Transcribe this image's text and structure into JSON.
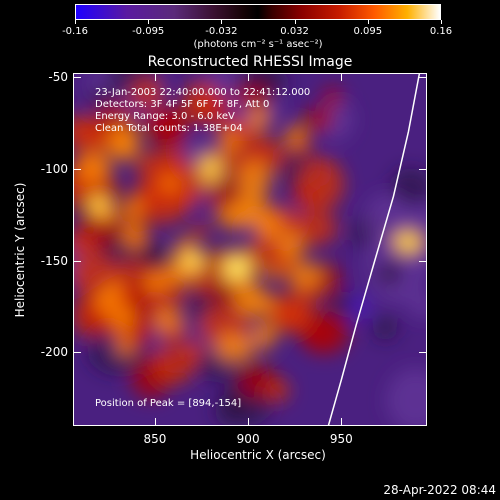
{
  "colorbar": {
    "tick_labels": [
      "-0.16",
      "-0.095",
      "-0.032",
      "0.032",
      "0.095",
      "0.16"
    ],
    "unit_label": "(photons cm⁻² s⁻¹ asec⁻²)"
  },
  "chart_data": {
    "type": "heatmap",
    "title": "Reconstructed RHESSI Image",
    "xlabel": "Heliocentric X (arcsec)",
    "ylabel": "Heliocentric Y (arcsec)",
    "xlim": [
      806,
      996
    ],
    "ylim": [
      -240,
      -48
    ],
    "xticks": [
      850,
      900,
      950
    ],
    "yticks": [
      -50,
      -100,
      -150,
      -200
    ],
    "zlim": [
      -0.16,
      0.16
    ],
    "peak": [
      894,
      -154
    ],
    "limb_curve": [
      [
        992,
        -48
      ],
      [
        986,
        -80
      ],
      [
        978,
        -115
      ],
      [
        968,
        -150
      ],
      [
        958,
        -185
      ],
      [
        950,
        -215
      ],
      [
        943,
        -240
      ]
    ]
  },
  "annotations": {
    "time_range": "23-Jan-2003 22:40:00.000 to 22:41:12.000",
    "detectors": "Detectors: 3F 4F 5F 6F 7F 8F, Att 0",
    "energy_range": "Energy Range: 3.0 - 6.0 keV",
    "method_counts": "Clean     Total counts: 1.38E+04",
    "peak_position": "Position of Peak = [894,-154]"
  },
  "footer": {
    "date": "28-Apr-2022 08:44"
  }
}
